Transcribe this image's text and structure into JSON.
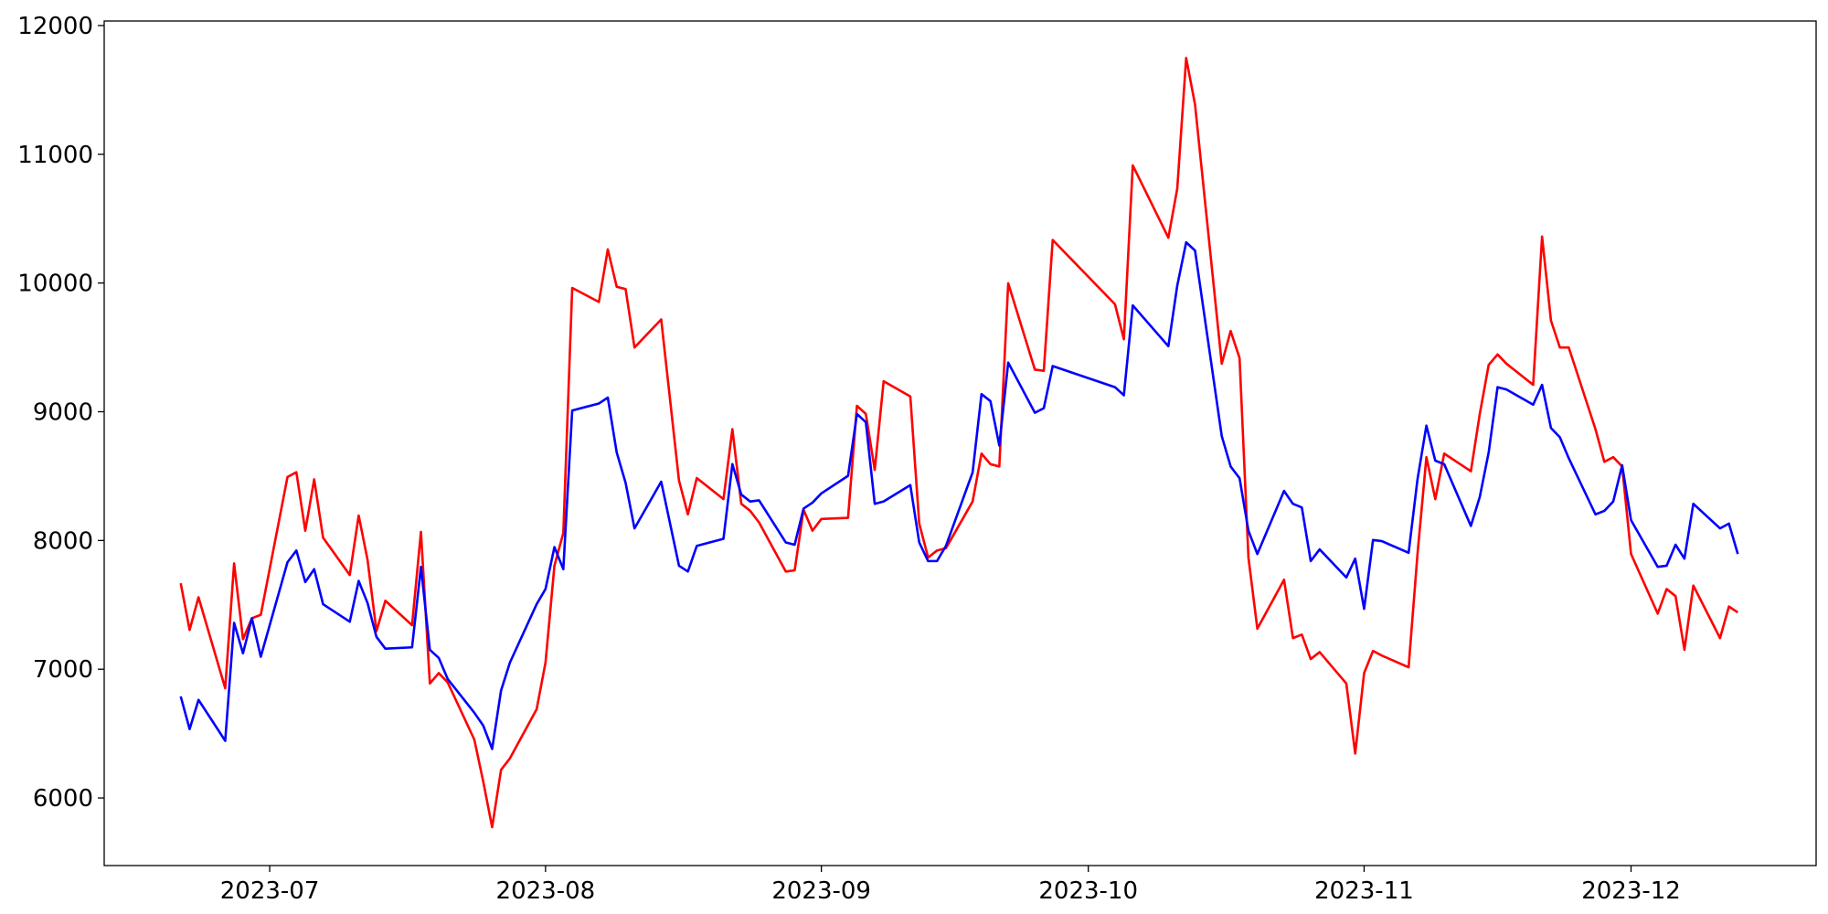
{
  "chart_data": {
    "type": "line",
    "x": [
      19529,
      19530,
      19531,
      19534,
      19535,
      19536,
      19537,
      19538,
      19541,
      19542,
      19543,
      19544,
      19545,
      19548,
      19549,
      19550,
      19551,
      19552,
      19555,
      19556,
      19557,
      19558,
      19559,
      19562,
      19563,
      19564,
      19565,
      19566,
      19569,
      19570,
      19571,
      19572,
      19573,
      19576,
      19577,
      19578,
      19579,
      19580,
      19583,
      19585,
      19586,
      19587,
      19590,
      19591,
      19592,
      19593,
      19594,
      19597,
      19598,
      19599,
      19600,
      19601,
      19604,
      19605,
      19606,
      19607,
      19608,
      19611,
      19612,
      19613,
      19614,
      19615,
      19618,
      19619,
      19620,
      19621,
      19622,
      19625,
      19626,
      19627,
      19634,
      19635,
      19636,
      19640,
      19641,
      19642,
      19643,
      19646,
      19647,
      19648,
      19649,
      19650,
      19653,
      19654,
      19655,
      19656,
      19657,
      19660,
      19661,
      19662,
      19663,
      19664,
      19667,
      19668,
      19669,
      19670,
      19671,
      19674,
      19675,
      19676,
      19677,
      19678,
      19681,
      19682,
      19683,
      19684,
      19685,
      19688,
      19689,
      19690,
      19691,
      19692,
      19695,
      19696,
      19697,
      19698,
      19699,
      19702,
      19703,
      19704
    ],
    "series": [
      {
        "color": "#ff0000",
        "values": [
          7668,
          7305,
          7559,
          6852,
          7822,
          7233,
          7396,
          7423,
          8493,
          8530,
          8076,
          8475,
          8022,
          7732,
          8194,
          7849,
          7296,
          7532,
          7342,
          8067,
          6889,
          6970,
          6898,
          6453,
          6127,
          5773,
          6218,
          6308,
          6689,
          7052,
          7804,
          8058,
          9962,
          9853,
          10261,
          9971,
          9953,
          9499,
          9717,
          8466,
          8203,
          8485,
          8321,
          8865,
          8285,
          8230,
          8140,
          7759,
          7768,
          8239,
          8076,
          8167,
          8176,
          9046,
          8983,
          8548,
          9237,
          9119,
          8131,
          7868,
          7922,
          7940,
          8303,
          8675,
          8593,
          8575,
          9998,
          9327,
          9318,
          10334,
          9835,
          9563,
          10914,
          10352,
          10733,
          11748,
          11385,
          9373,
          9627,
          9418,
          7868,
          7315,
          7695,
          7242,
          7269,
          7079,
          7133,
          6889,
          6345,
          6970,
          7142,
          7106,
          7015,
          7895,
          8647,
          8321,
          8675,
          8538,
          8983,
          9364,
          9445,
          9373,
          9209,
          10361,
          9708,
          9499,
          9499,
          8865,
          8611,
          8647,
          8575,
          7895,
          7432,
          7623,
          7568,
          7151,
          7650,
          7242,
          7487,
          7441
        ]
      },
      {
        "color": "#0000ff",
        "values": [
          6789,
          6535,
          6762,
          6444,
          7360,
          7124,
          7396,
          7097,
          7831,
          7922,
          7677,
          7777,
          7505,
          7369,
          7686,
          7514,
          7251,
          7160,
          7170,
          7795,
          7151,
          7088,
          6925,
          6662,
          6562,
          6381,
          6834,
          7052,
          7505,
          7623,
          7949,
          7777,
          9010,
          9064,
          9110,
          8684,
          8448,
          8094,
          8457,
          7804,
          7759,
          7958,
          8013,
          8593,
          8357,
          8303,
          8312,
          7985,
          7967,
          8248,
          8294,
          8366,
          8502,
          8983,
          8919,
          8285,
          8303,
          8430,
          7985,
          7840,
          7840,
          7958,
          8529,
          9137,
          9083,
          8738,
          9382,
          8992,
          9028,
          9355,
          9191,
          9128,
          9826,
          9509,
          9980,
          10316,
          10252,
          8811,
          8575,
          8484,
          8076,
          7895,
          8385,
          8285,
          8257,
          7840,
          7931,
          7713,
          7859,
          7469,
          8004,
          7995,
          7904,
          8475,
          8892,
          8620,
          8593,
          8113,
          8339,
          8684,
          9191,
          9173,
          9055,
          9209,
          8874,
          8802,
          8639,
          8203,
          8230,
          8303,
          8584,
          8158,
          7795,
          7804,
          7967,
          7859,
          8285,
          8094,
          8131,
          7895
        ]
      }
    ],
    "xlim": [
      19520.4,
      19712.8
    ],
    "xticks": [
      {
        "value": 19539,
        "label": "2023-07"
      },
      {
        "value": 19570,
        "label": "2023-08"
      },
      {
        "value": 19601,
        "label": "2023-09"
      },
      {
        "value": 19631,
        "label": "2023-10"
      },
      {
        "value": 19662,
        "label": "2023-11"
      },
      {
        "value": 19692,
        "label": "2023-12"
      }
    ],
    "ylim": [
      5475,
      12035
    ],
    "yticks": [
      6000,
      7000,
      8000,
      9000,
      10000,
      11000,
      12000
    ],
    "grid": false
  }
}
